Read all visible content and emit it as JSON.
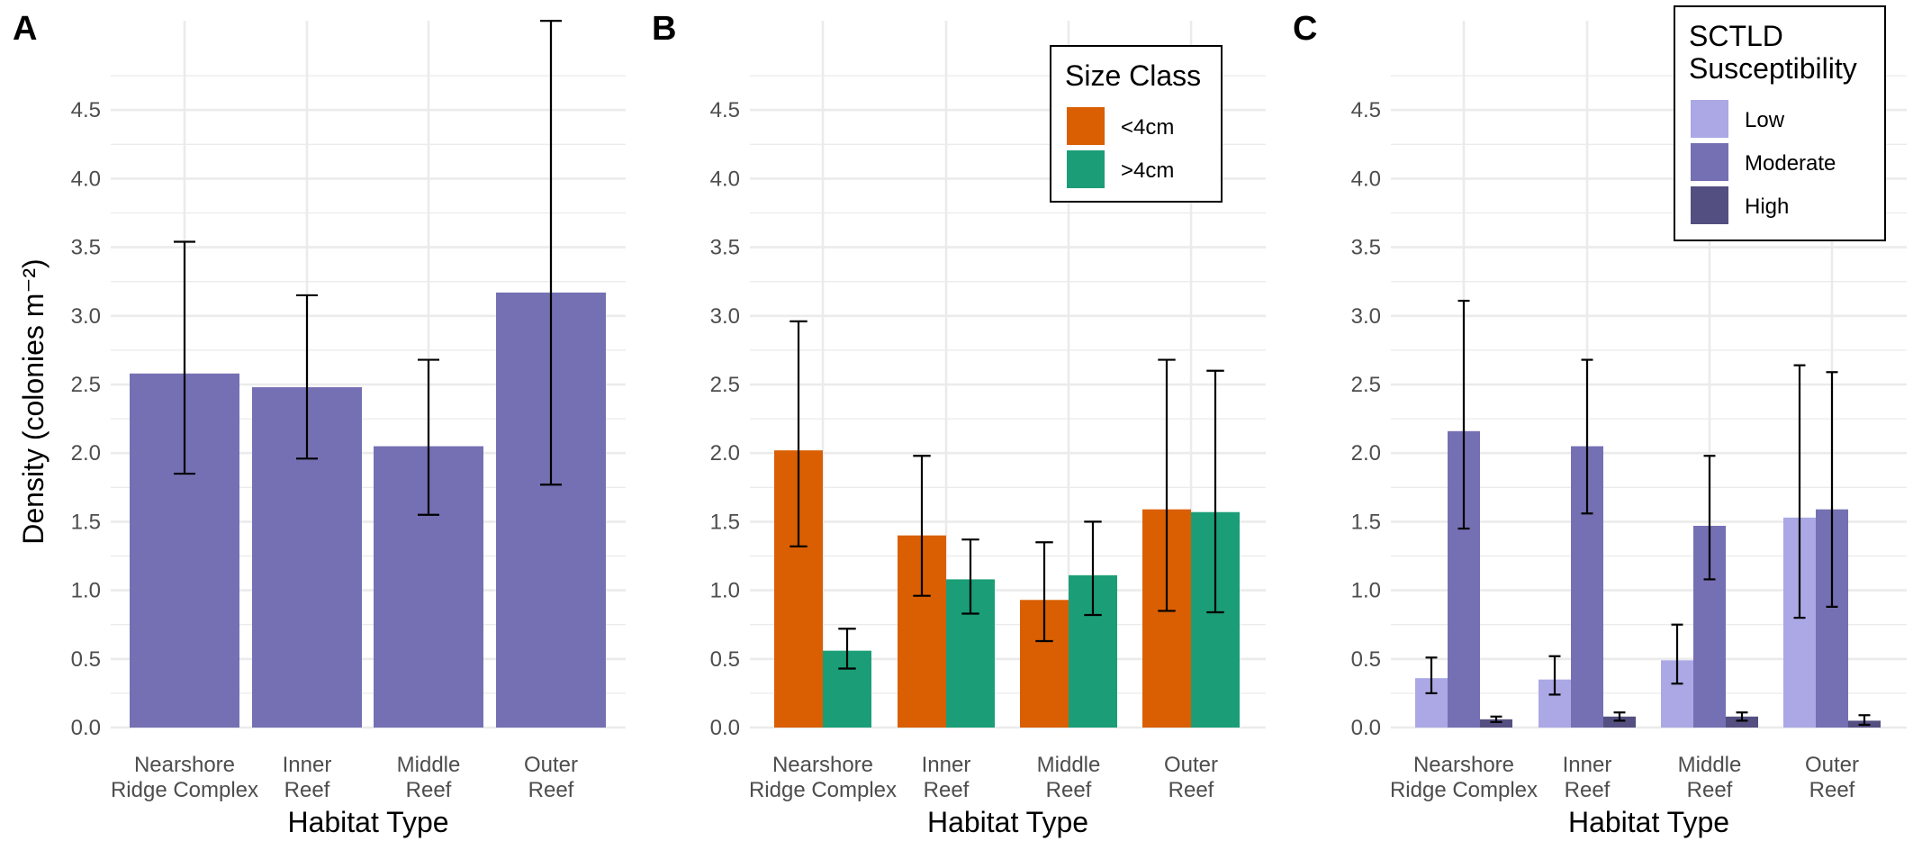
{
  "figure": {
    "ylabel": "Density (colonies m⁻²)",
    "xlabel": "Habitat Type"
  },
  "chart_data": [
    {
      "type": "bar",
      "panel": "A",
      "categories": [
        [
          "Nearshore",
          "Ridge Complex"
        ],
        [
          "Inner",
          "Reef"
        ],
        [
          "Middle",
          "Reef"
        ],
        [
          "Outer",
          "Reef"
        ]
      ],
      "series": [
        {
          "name": "",
          "color": "#7570b3",
          "values": [
            2.58,
            2.48,
            2.05,
            3.17
          ],
          "lower": [
            1.85,
            1.96,
            1.55,
            1.77
          ],
          "upper": [
            3.54,
            3.15,
            2.68,
            5.15
          ]
        }
      ],
      "xlabel": "Habitat Type",
      "ylabel": "Density (colonies m⁻²)",
      "yticks": [
        "0.0",
        "0.5",
        "1.0",
        "1.5",
        "2.0",
        "2.5",
        "3.0",
        "3.5",
        "4.0",
        "4.5"
      ],
      "ylim": [
        0,
        5.15
      ],
      "grid": true,
      "legend": null
    },
    {
      "type": "bar",
      "panel": "B",
      "categories": [
        [
          "Nearshore",
          "Ridge Complex"
        ],
        [
          "Inner",
          "Reef"
        ],
        [
          "Middle",
          "Reef"
        ],
        [
          "Outer",
          "Reef"
        ]
      ],
      "series": [
        {
          "name": "<4cm",
          "color": "#d95f02",
          "values": [
            2.02,
            1.4,
            0.93,
            1.59
          ],
          "lower": [
            1.32,
            0.96,
            0.63,
            0.85
          ],
          "upper": [
            2.96,
            1.98,
            1.35,
            2.68
          ]
        },
        {
          "name": ">4cm",
          "color": "#1b9e77",
          "values": [
            0.56,
            1.08,
            1.11,
            1.57
          ],
          "lower": [
            0.43,
            0.83,
            0.82,
            0.84
          ],
          "upper": [
            0.72,
            1.37,
            1.5,
            2.6
          ]
        }
      ],
      "xlabel": "Habitat Type",
      "yticks": [
        "0.0",
        "0.5",
        "1.0",
        "1.5",
        "2.0",
        "2.5",
        "3.0",
        "3.5",
        "4.0",
        "4.5"
      ],
      "ylim": [
        0,
        5.15
      ],
      "grid": true,
      "legend": {
        "title": "Size Class",
        "position": "top-right"
      }
    },
    {
      "type": "bar",
      "panel": "C",
      "categories": [
        [
          "Nearshore",
          "Ridge Complex"
        ],
        [
          "Inner",
          "Reef"
        ],
        [
          "Middle",
          "Reef"
        ],
        [
          "Outer",
          "Reef"
        ]
      ],
      "series": [
        {
          "name": "Low",
          "color": "#aba8e5",
          "values": [
            0.36,
            0.35,
            0.49,
            1.53
          ],
          "lower": [
            0.25,
            0.24,
            0.32,
            0.8
          ],
          "upper": [
            0.51,
            0.52,
            0.75,
            2.64
          ]
        },
        {
          "name": "Moderate",
          "color": "#7570b3",
          "values": [
            2.16,
            2.05,
            1.47,
            1.59
          ],
          "lower": [
            1.45,
            1.56,
            1.08,
            0.88
          ],
          "upper": [
            3.11,
            2.68,
            1.98,
            2.59
          ]
        },
        {
          "name": "High",
          "color": "#534f81",
          "values": [
            0.06,
            0.08,
            0.08,
            0.05
          ],
          "lower": [
            0.04,
            0.05,
            0.05,
            0.02
          ],
          "upper": [
            0.08,
            0.11,
            0.11,
            0.09
          ]
        }
      ],
      "xlabel": "Habitat Type",
      "yticks": [
        "0.0",
        "0.5",
        "1.0",
        "1.5",
        "2.0",
        "2.5",
        "3.0",
        "3.5",
        "4.0",
        "4.5"
      ],
      "ylim": [
        0,
        5.15
      ],
      "grid": true,
      "legend": {
        "title": [
          "SCTLD",
          "Susceptibility"
        ],
        "position": "top-right"
      }
    }
  ]
}
